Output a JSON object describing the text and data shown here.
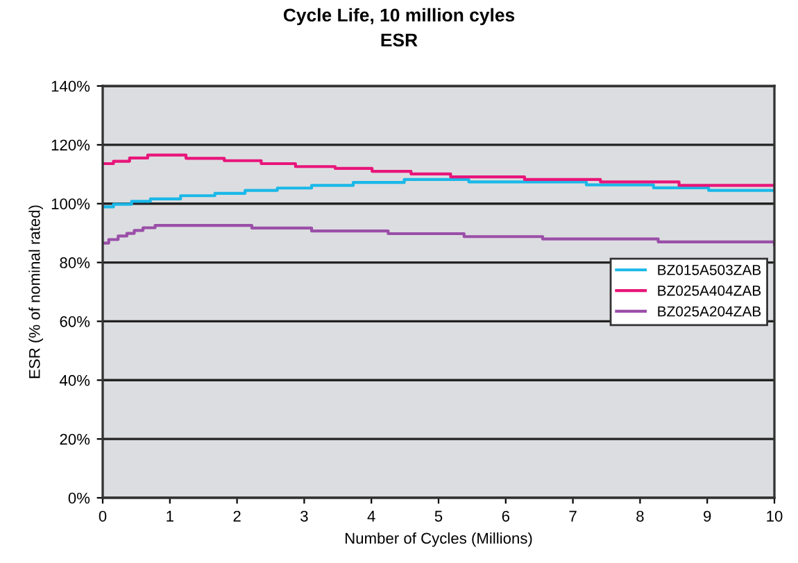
{
  "chart_data": {
    "type": "step",
    "title": "Cycle Life, 10 million cyles",
    "subtitle": "ESR",
    "xlabel": "Number of Cycles (Millions)",
    "ylabel": "ESR (% of nominal rated)",
    "series": [
      {
        "name": "BZ015A503ZAB",
        "color": "#1ab8e8",
        "x": [
          0,
          0.16,
          0.43,
          0.71,
          1.16,
          1.67,
          2.12,
          2.6,
          3.11,
          3.73,
          4.49,
          5.45,
          7.2,
          8.2,
          9.02,
          10
        ],
        "values": [
          98.9,
          99.8,
          100.8,
          101.6,
          102.7,
          103.5,
          104.5,
          105.3,
          106.2,
          107.2,
          108.2,
          107.4,
          106.4,
          105.4,
          104.5,
          104.5
        ]
      },
      {
        "name": "BZ025A404ZAB",
        "color": "#e8157a",
        "x": [
          0,
          0.16,
          0.4,
          0.67,
          1.24,
          1.81,
          2.36,
          2.87,
          3.46,
          4.01,
          4.59,
          5.18,
          6.28,
          7.41,
          8.58,
          10
        ],
        "values": [
          113.6,
          114.4,
          115.5,
          116.5,
          115.4,
          114.6,
          113.6,
          112.6,
          112.0,
          111.0,
          110.1,
          109.1,
          108.2,
          107.4,
          106.2,
          106.2
        ]
      },
      {
        "name": "BZ025A204ZAB",
        "color": "#9a4fa8",
        "x": [
          0,
          0.09,
          0.23,
          0.36,
          0.47,
          0.6,
          0.78,
          2.22,
          3.11,
          4.25,
          5.38,
          6.55,
          8.27,
          10
        ],
        "values": [
          86.6,
          87.8,
          89.0,
          89.9,
          90.9,
          91.8,
          92.6,
          91.7,
          90.7,
          89.8,
          88.8,
          88.0,
          87.0,
          86.1
        ]
      }
    ],
    "xlim": [
      0,
      10
    ],
    "xticks": [
      0,
      1,
      2,
      3,
      4,
      5,
      6,
      7,
      8,
      9,
      10
    ],
    "ylim": [
      0,
      140
    ],
    "yticks": [
      {
        "value": 0,
        "label": "0%"
      },
      {
        "value": 20,
        "label": "20%"
      },
      {
        "value": 40,
        "label": "40%"
      },
      {
        "value": 60,
        "label": "60%"
      },
      {
        "value": 80,
        "label": "80%"
      },
      {
        "value": 100,
        "label": "100%"
      },
      {
        "value": 120,
        "label": "120%"
      },
      {
        "value": 140,
        "label": "140%"
      }
    ],
    "grid": "y",
    "legend": "center right",
    "marker": "none",
    "line_style": "solid"
  }
}
